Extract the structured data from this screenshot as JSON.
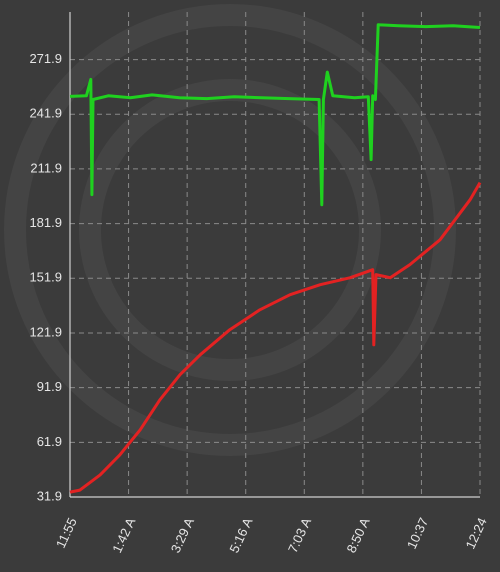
{
  "chart_data": {
    "type": "line",
    "xlim": [
      0,
      749
    ],
    "xticks": [
      {
        "value": 0,
        "label": "11:55"
      },
      {
        "value": 107,
        "label": "1:42 A"
      },
      {
        "value": 214,
        "label": "3:29 A"
      },
      {
        "value": 321,
        "label": "5:16 A"
      },
      {
        "value": 428,
        "label": "7:03 A"
      },
      {
        "value": 535,
        "label": "8:50 A"
      },
      {
        "value": 642,
        "label": "10:37"
      },
      {
        "value": 749,
        "label": "12:24"
      }
    ],
    "ylim": [
      31.9,
      298
    ],
    "yticks": [
      31.9,
      61.9,
      91.9,
      121.9,
      151.9,
      181.9,
      211.9,
      241.9,
      271.9
    ],
    "grid": true,
    "series": [
      {
        "color": "#1fd11f",
        "x": [
          0,
          30,
          38,
          40,
          42,
          70,
          110,
          150,
          200,
          250,
          300,
          350,
          400,
          455,
          460,
          463,
          470,
          480,
          520,
          545,
          550,
          553,
          558,
          563,
          600,
          650,
          700,
          749
        ],
        "values": [
          251.7,
          252,
          261,
          197.8,
          250,
          252,
          251,
          252.5,
          251,
          250.5,
          251.5,
          251,
          250.5,
          250,
          192.3,
          250,
          265,
          252,
          251,
          251.5,
          217,
          252,
          250,
          291,
          290.5,
          290,
          290.5,
          289.5
        ]
      },
      {
        "color": "#e32222",
        "x": [
          0,
          18,
          55,
          91,
          128,
          164,
          201,
          238,
          292,
          347,
          402,
          457,
          512,
          553,
          555,
          559,
          585,
          621,
          676,
          731,
          749
        ],
        "values": [
          34.6,
          35.7,
          44,
          55,
          68.7,
          85.2,
          99,
          110,
          123.7,
          134.6,
          142.9,
          148.4,
          152.2,
          156.6,
          115.4,
          153.9,
          152.2,
          159.4,
          173,
          195,
          204.4
        ]
      }
    ]
  }
}
